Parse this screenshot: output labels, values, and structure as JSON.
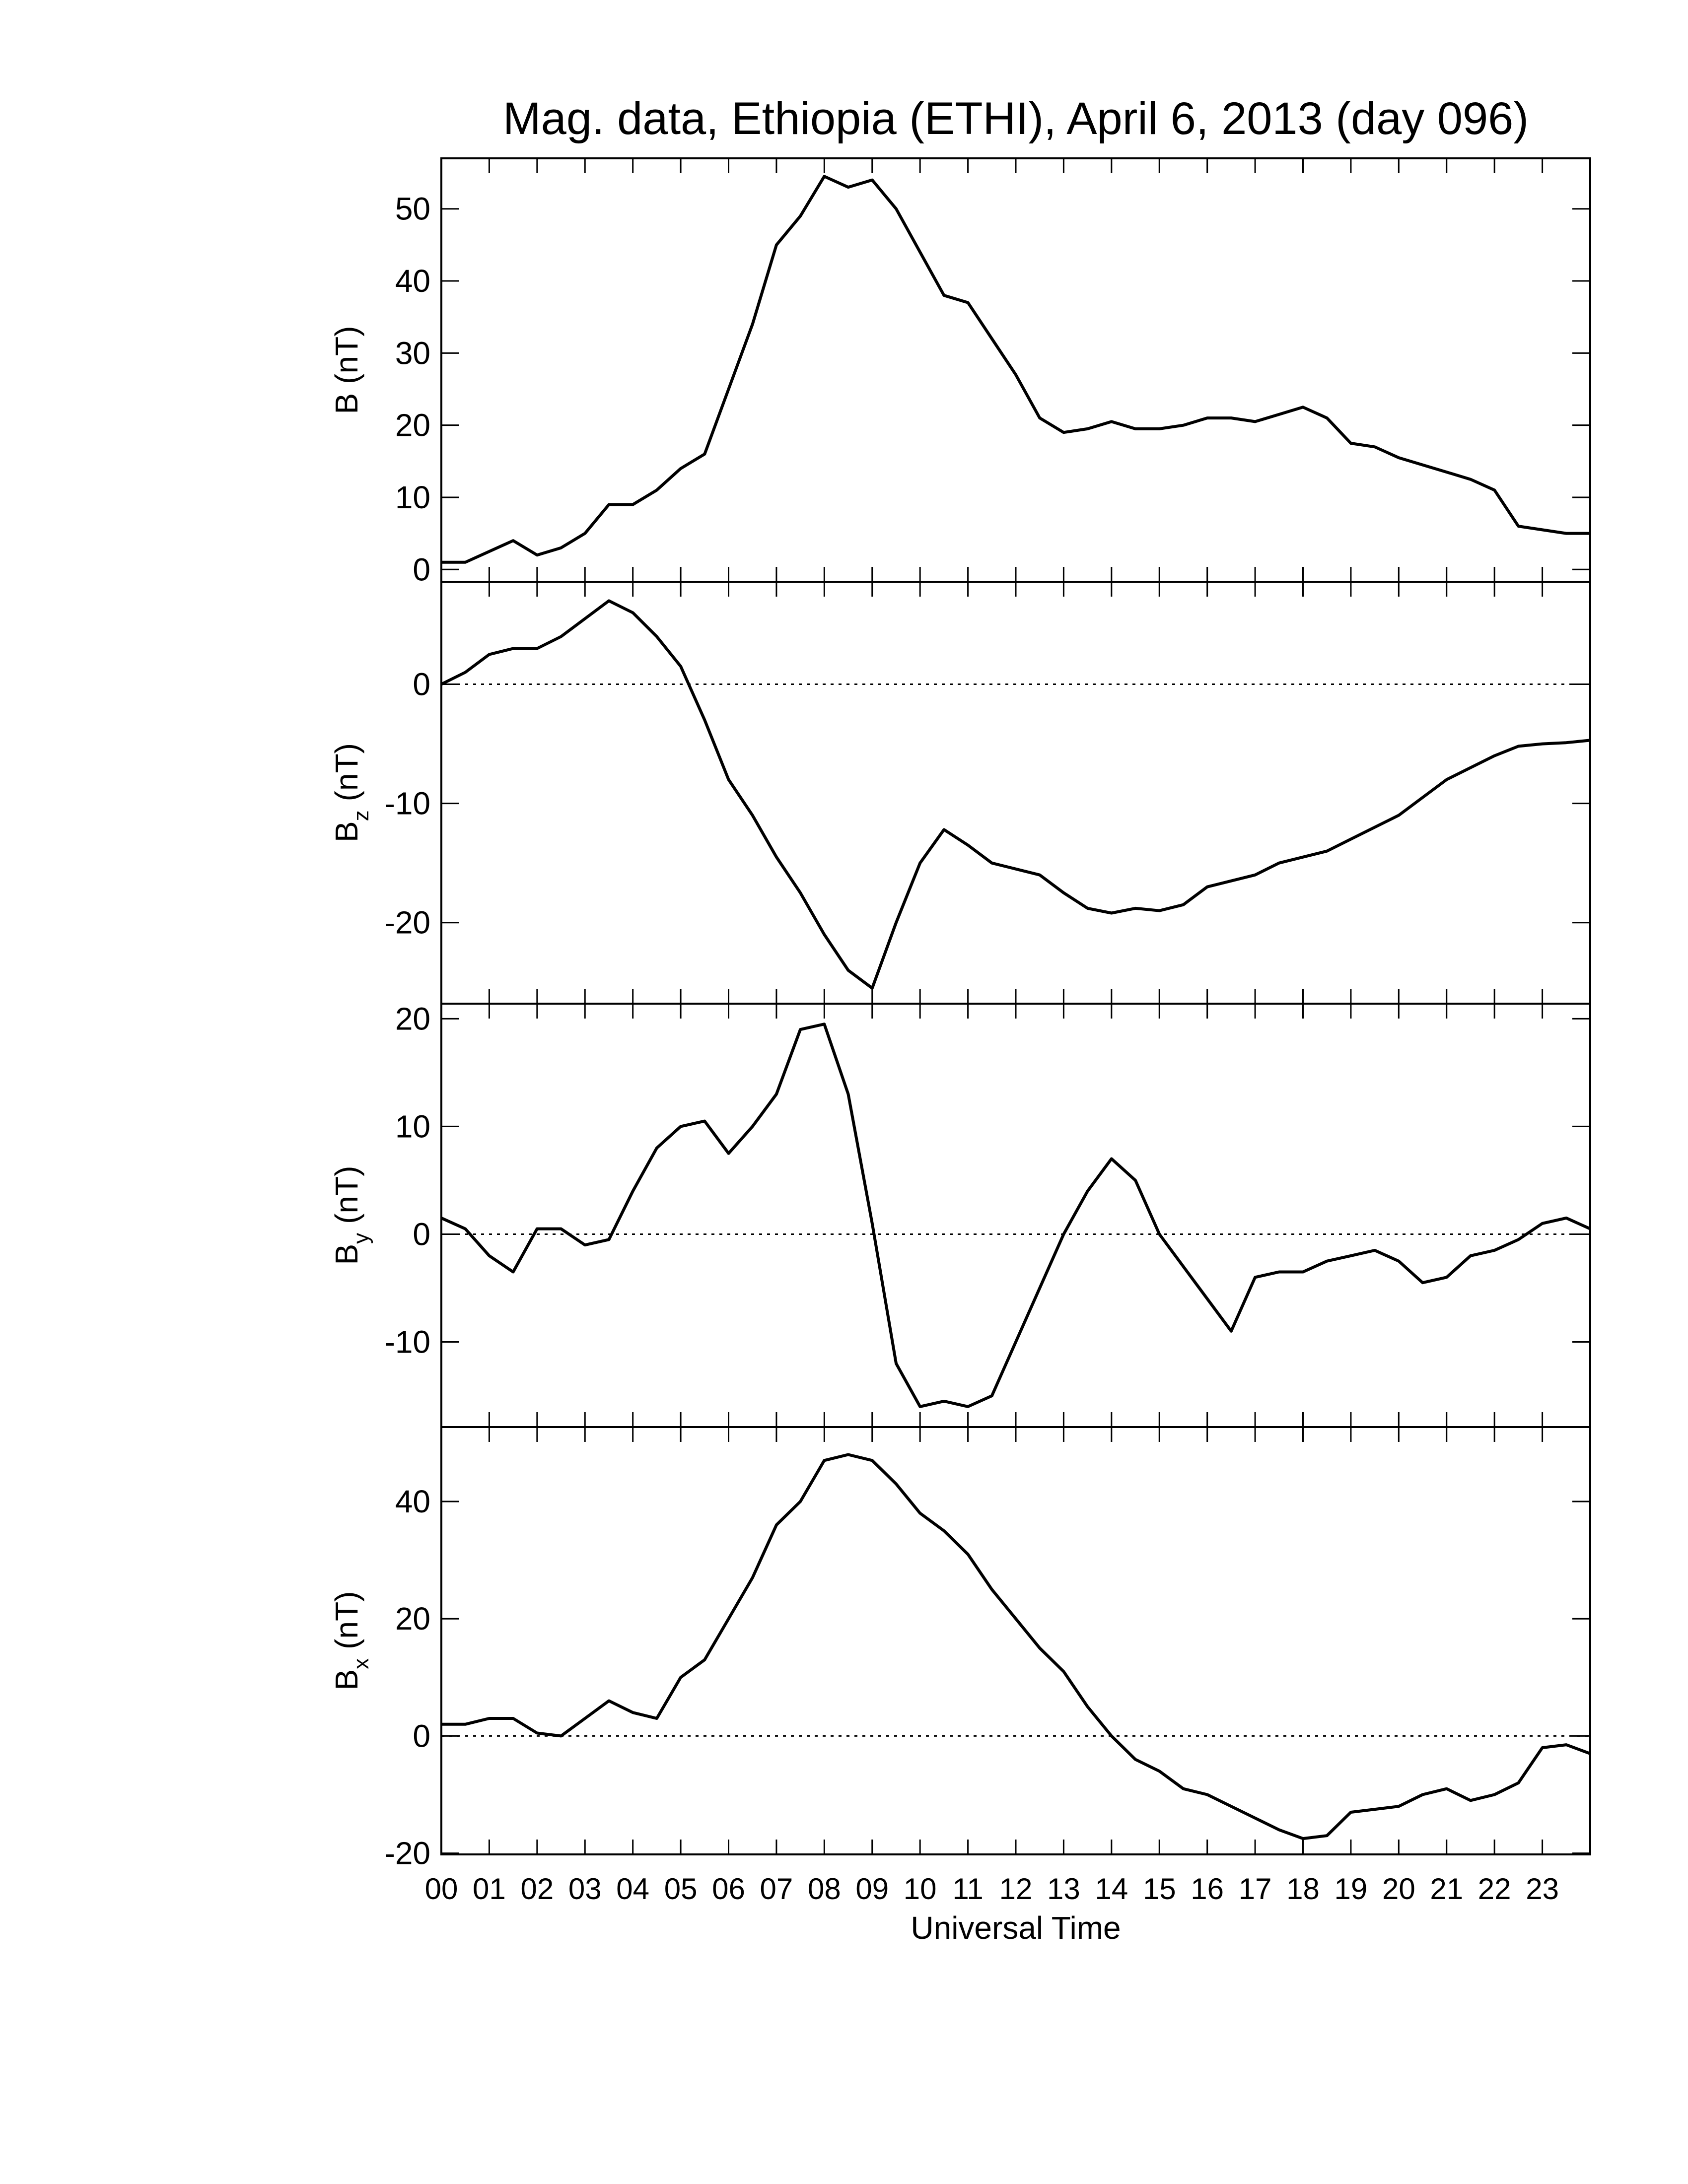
{
  "chart_data": [
    {
      "type": "line",
      "title": "Mag. data, Ethiopia (ETHI), April 6, 2013 (day 096)",
      "ylabel_main": "B",
      "ylabel_unit": "(nT)",
      "xlim": [
        0,
        24
      ],
      "xticks": [
        0,
        1,
        2,
        3,
        4,
        5,
        6,
        7,
        8,
        9,
        10,
        11,
        12,
        13,
        14,
        15,
        16,
        17,
        18,
        19,
        20,
        21,
        22,
        23,
        24
      ],
      "ylim": [
        -1.7,
        57
      ],
      "yticks": [
        0,
        10,
        20,
        30,
        40,
        50
      ],
      "x": [
        0,
        0.5,
        1,
        1.5,
        2,
        2.5,
        3,
        3.5,
        4,
        4.5,
        5,
        5.5,
        6,
        6.5,
        7,
        7.5,
        8,
        8.5,
        9,
        9.5,
        10,
        10.5,
        11,
        11.5,
        12,
        12.5,
        13,
        13.5,
        14,
        14.5,
        15,
        15.5,
        16,
        16.5,
        17,
        17.5,
        18,
        18.5,
        19,
        19.5,
        20,
        20.5,
        21,
        21.5,
        22,
        22.5,
        23,
        23.5,
        24
      ],
      "series": [
        {
          "color": "#000000",
          "values": [
            1,
            1,
            2.5,
            4,
            2,
            3,
            5,
            9,
            9,
            11,
            14,
            16,
            25,
            34,
            45,
            49,
            54.5,
            53,
            54,
            50,
            44,
            38,
            37,
            32,
            27,
            21,
            19,
            19.5,
            20.5,
            19.5,
            19.5,
            20,
            21,
            21,
            20.5,
            21.5,
            22.5,
            21,
            17.5,
            17,
            15.5,
            14.5,
            13.5,
            12.5,
            11,
            6,
            5.5,
            5,
            5
          ]
        }
      ]
    },
    {
      "type": "line",
      "ylabel_main": "B",
      "ylabel_sub": "z",
      "ylabel_unit": "(nT)",
      "zero_line": true,
      "xlim": [
        0,
        24
      ],
      "xticks": [
        0,
        1,
        2,
        3,
        4,
        5,
        6,
        7,
        8,
        9,
        10,
        11,
        12,
        13,
        14,
        15,
        16,
        17,
        18,
        19,
        20,
        21,
        22,
        23,
        24
      ],
      "ylim": [
        -26.8,
        8.6
      ],
      "yticks": [
        -20,
        -10,
        0
      ],
      "x": [
        0,
        0.5,
        1,
        1.5,
        2,
        2.5,
        3,
        3.5,
        4,
        4.5,
        5,
        5.5,
        6,
        6.5,
        7,
        7.5,
        8,
        8.5,
        9,
        9.5,
        10,
        10.5,
        11,
        11.5,
        12,
        12.5,
        13,
        13.5,
        14,
        14.5,
        15,
        15.5,
        16,
        16.5,
        17,
        17.5,
        18,
        18.5,
        19,
        19.5,
        20,
        20.5,
        21,
        21.5,
        22,
        22.5,
        23,
        23.5,
        24
      ],
      "series": [
        {
          "color": "#000000",
          "values": [
            0,
            1,
            2.5,
            3,
            3,
            4,
            5.5,
            7,
            6,
            4,
            1.5,
            -3,
            -8,
            -11,
            -14.5,
            -17.5,
            -21,
            -24,
            -25.5,
            -20,
            -15,
            -12.2,
            -13.5,
            -15,
            -15.5,
            -16,
            -17.5,
            -18.8,
            -19.2,
            -18.8,
            -19,
            -18.5,
            -17,
            -16.5,
            -16,
            -15,
            -14.5,
            -14,
            -13,
            -12,
            -11,
            -9.5,
            -8,
            -7,
            -6,
            -5.2,
            -5,
            -4.9,
            -4.7
          ]
        }
      ]
    },
    {
      "type": "line",
      "ylabel_main": "B",
      "ylabel_sub": "y",
      "ylabel_unit": "(nT)",
      "zero_line": true,
      "xlim": [
        0,
        24
      ],
      "xticks": [
        0,
        1,
        2,
        3,
        4,
        5,
        6,
        7,
        8,
        9,
        10,
        11,
        12,
        13,
        14,
        15,
        16,
        17,
        18,
        19,
        20,
        21,
        22,
        23,
        24
      ],
      "ylim": [
        -17.9,
        21.4
      ],
      "yticks": [
        -10,
        0,
        10,
        20
      ],
      "x": [
        0,
        0.5,
        1,
        1.5,
        2,
        2.5,
        3,
        3.5,
        4,
        4.5,
        5,
        5.5,
        6,
        6.5,
        7,
        7.5,
        8,
        8.5,
        9,
        9.5,
        10,
        10.5,
        11,
        11.5,
        12,
        12.5,
        13,
        13.5,
        14,
        14.5,
        15,
        15.5,
        16,
        16.5,
        17,
        17.5,
        18,
        18.5,
        19,
        19.5,
        20,
        20.5,
        21,
        21.5,
        22,
        22.5,
        23,
        23.5,
        24
      ],
      "series": [
        {
          "color": "#000000",
          "values": [
            1.5,
            0.5,
            -2,
            -3.5,
            0.5,
            0.5,
            -1,
            -0.5,
            4,
            8,
            10,
            10.5,
            7.5,
            10,
            13,
            19,
            19.5,
            13,
            1,
            -12,
            -16,
            -15.5,
            -16,
            -15,
            -10,
            -5,
            0,
            4,
            7,
            5,
            0,
            -3,
            -6,
            -9,
            -4,
            -3.5,
            -3.5,
            -2.5,
            -2,
            -1.5,
            -2.5,
            -4.5,
            -4,
            -2,
            -1.5,
            -0.5,
            1,
            1.5,
            0.5
          ]
        }
      ]
    },
    {
      "type": "line",
      "ylabel_main": "B",
      "ylabel_sub": "x",
      "ylabel_unit": "(nT)",
      "zero_line": true,
      "xlabel": "Universal Time",
      "xlim": [
        0,
        24
      ],
      "xticks": [
        {
          "value": 0,
          "label": "00"
        },
        {
          "value": 1,
          "label": "01"
        },
        {
          "value": 2,
          "label": "02"
        },
        {
          "value": 3,
          "label": "03"
        },
        {
          "value": 4,
          "label": "04"
        },
        {
          "value": 5,
          "label": "05"
        },
        {
          "value": 6,
          "label": "06"
        },
        {
          "value": 7,
          "label": "07"
        },
        {
          "value": 8,
          "label": "08"
        },
        {
          "value": 9,
          "label": "09"
        },
        {
          "value": 10,
          "label": "10"
        },
        {
          "value": 11,
          "label": "11"
        },
        {
          "value": 12,
          "label": "12"
        },
        {
          "value": 13,
          "label": "13"
        },
        {
          "value": 14,
          "label": "14"
        },
        {
          "value": 15,
          "label": "15"
        },
        {
          "value": 16,
          "label": "16"
        },
        {
          "value": 17,
          "label": "17"
        },
        {
          "value": 18,
          "label": "18"
        },
        {
          "value": 19,
          "label": "19"
        },
        {
          "value": 20,
          "label": "20"
        },
        {
          "value": 21,
          "label": "21"
        },
        {
          "value": 22,
          "label": "22"
        },
        {
          "value": 23,
          "label": "23"
        }
      ],
      "ylim": [
        -20.2,
        52.7
      ],
      "yticks": [
        -20,
        0,
        20,
        40
      ],
      "x": [
        0,
        0.5,
        1,
        1.5,
        2,
        2.5,
        3,
        3.5,
        4,
        4.5,
        5,
        5.5,
        6,
        6.5,
        7,
        7.5,
        8,
        8.5,
        9,
        9.5,
        10,
        10.5,
        11,
        11.5,
        12,
        12.5,
        13,
        13.5,
        14,
        14.5,
        15,
        15.5,
        16,
        16.5,
        17,
        17.5,
        18,
        18.5,
        19,
        19.5,
        20,
        20.5,
        21,
        21.5,
        22,
        22.5,
        23,
        23.5,
        24
      ],
      "series": [
        {
          "color": "#000000",
          "values": [
            2,
            2,
            3,
            3,
            0.5,
            0,
            3,
            6,
            4,
            3,
            10,
            13,
            20,
            27,
            36,
            40,
            47,
            48,
            47,
            43,
            38,
            35,
            31,
            25,
            20,
            15,
            11,
            5,
            0,
            -4,
            -6,
            -9,
            -10,
            -12,
            -14,
            -16,
            -17.5,
            -17,
            -13,
            -12.5,
            -12,
            -10,
            -9,
            -11,
            -10,
            -8,
            -2,
            -1.5,
            -3
          ]
        }
      ]
    }
  ]
}
